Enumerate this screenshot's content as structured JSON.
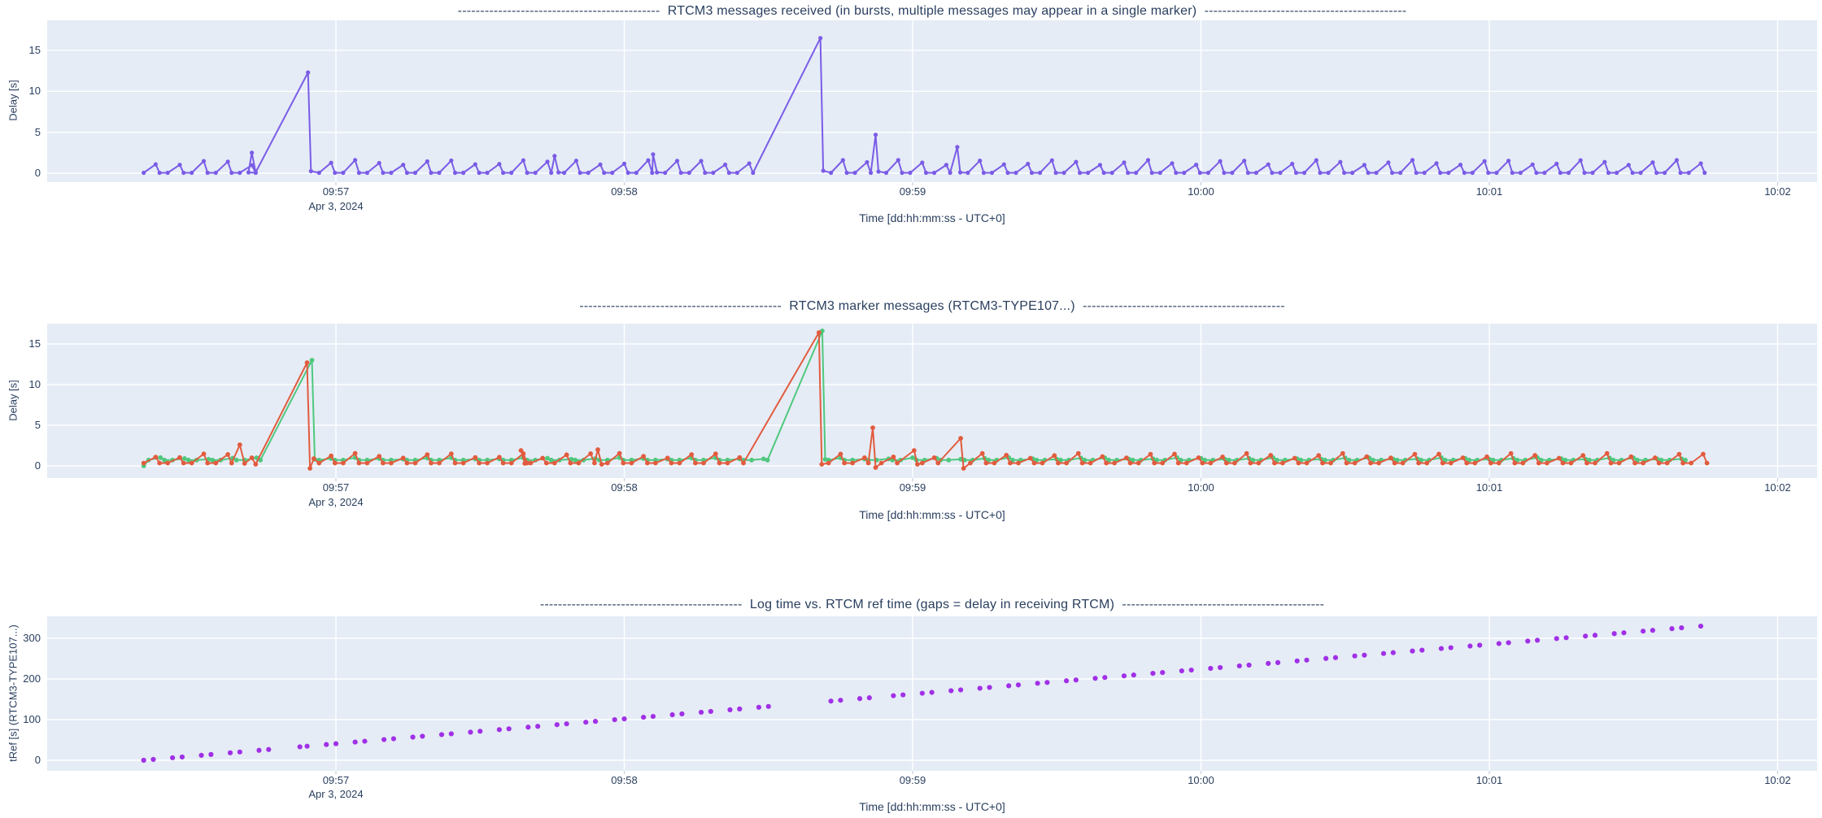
{
  "styles": {
    "plot_bg": "#e5ecf6",
    "grid_color": "#ffffff",
    "text_color": "#2a3f5f",
    "tick_mark_color": "#c4cede"
  },
  "chart_data": [
    {
      "id": "rtcm3-messages-received",
      "type": "line",
      "dashes": "---------------------------------------------",
      "title": "RTCM3 messages received (in bursts, multiple messages may appear in a single marker)",
      "xlabel": "Time [dd:hh:mm:ss - UTC+0]",
      "ylabel": "Delay [s]",
      "x_axis": {
        "origin": "09:56:00",
        "range_s": [
          0,
          368
        ],
        "date_label": "Apr 3, 2024",
        "ticks": [
          {
            "t": 60,
            "label": "09:57"
          },
          {
            "t": 120,
            "label": "09:58"
          },
          {
            "t": 180,
            "label": "09:59"
          },
          {
            "t": 240,
            "label": "10:00"
          },
          {
            "t": 300,
            "label": "10:01"
          },
          {
            "t": 360,
            "label": "10:02"
          }
        ]
      },
      "y_axis": {
        "range": [
          -1.1,
          18.7
        ],
        "ticks": [
          0,
          5,
          10,
          15
        ]
      },
      "series": [
        {
          "name": "rtcm3-delay",
          "mode": "lines+markers",
          "color": "#7a5ce6",
          "hi_var": 0.3,
          "segments": [
            {
              "type": "saw",
              "t0": 20,
              "t1": 41,
              "p": 5,
              "lo": 0.05,
              "hi": 1.25
            },
            {
              "type": "pts",
              "pts": [
                [
                  41.8,
                  0.1
                ],
                [
                  42.5,
                  2.5
                ],
                [
                  43.3,
                  0.1
                ]
              ]
            },
            {
              "type": "pts",
              "pts": [
                [
                  54.2,
                  12.3
                ],
                [
                  54.8,
                  0.25
                ]
              ]
            },
            {
              "type": "saw",
              "t0": 56.5,
              "t1": 104,
              "p": 5,
              "lo": 0.05,
              "hi": 1.3
            },
            {
              "type": "pts",
              "pts": [
                [
                  105.5,
                  2.1
                ],
                [
                  106.3,
                  0.1
                ]
              ]
            },
            {
              "type": "saw",
              "t0": 107.5,
              "t1": 124,
              "p": 5,
              "lo": 0.05,
              "hi": 1.3
            },
            {
              "type": "pts",
              "pts": [
                [
                  126,
                  2.3
                ],
                [
                  126.8,
                  0.1
                ]
              ]
            },
            {
              "type": "saw",
              "t0": 128.5,
              "t1": 146,
              "p": 5,
              "lo": 0.05,
              "hi": 1.3
            },
            {
              "type": "pts",
              "pts": [
                [
                  160.8,
                  16.5
                ],
                [
                  161.4,
                  0.3
                ]
              ]
            },
            {
              "type": "saw",
              "t0": 163,
              "t1": 169,
              "p": 5,
              "lo": 0.05,
              "hi": 1.3
            },
            {
              "type": "pts",
              "pts": [
                [
                  172.3,
                  4.7
                ],
                [
                  172.9,
                  0.2
                ]
              ]
            },
            {
              "type": "saw",
              "t0": 174.5,
              "t1": 186,
              "p": 5,
              "lo": 0.05,
              "hi": 1.3
            },
            {
              "type": "pts",
              "pts": [
                [
                  189.3,
                  3.2
                ],
                [
                  189.9,
                  0.1
                ]
              ]
            },
            {
              "type": "saw",
              "t0": 191.5,
              "t1": 342,
              "p": 5,
              "lo": 0.05,
              "hi": 1.3
            }
          ]
        }
      ]
    },
    {
      "id": "rtcm3-marker-messages",
      "type": "line",
      "dashes": "---------------------------------------------",
      "title": "RTCM3 marker messages (RTCM3-TYPE107...)",
      "xlabel": "Time [dd:hh:mm:ss - UTC+0]",
      "ylabel": "Delay [s]",
      "x_axis": {
        "origin": "09:56:00",
        "range_s": [
          0,
          368
        ],
        "date_label": "Apr 3, 2024",
        "ticks": [
          {
            "t": 60,
            "label": "09:57"
          },
          {
            "t": 120,
            "label": "09:58"
          },
          {
            "t": 180,
            "label": "09:59"
          },
          {
            "t": 240,
            "label": "10:00"
          },
          {
            "t": 300,
            "label": "10:01"
          },
          {
            "t": 360,
            "label": "10:02"
          }
        ]
      },
      "y_axis": {
        "range": [
          -1.5,
          17.5
        ],
        "ticks": [
          0,
          5,
          10,
          15
        ]
      },
      "series": [
        {
          "name": "marker-delay-green",
          "mode": "lines+markers",
          "color": "#4fc87d",
          "hi_var": 0.1,
          "segments": [
            {
              "type": "pts",
              "pts": [
                [
                  20,
                  0
                ]
              ]
            },
            {
              "type": "saw",
              "t0": 21,
              "t1": 41,
              "p": 5,
              "lo": 0.72,
              "hi": 0.92
            },
            {
              "type": "pts",
              "pts": [
                [
                  55,
                  13.0
                ],
                [
                  55.6,
                  0.8
                ]
              ]
            },
            {
              "type": "saw",
              "t0": 56.5,
              "t1": 147,
              "p": 5,
              "lo": 0.72,
              "hi": 0.92
            },
            {
              "type": "pts",
              "pts": [
                [
                  161.2,
                  16.6
                ],
                [
                  161.8,
                  0.8
                ]
              ]
            },
            {
              "type": "saw",
              "t0": 162.5,
              "t1": 342,
              "p": 5,
              "lo": 0.72,
              "hi": 0.92
            }
          ]
        },
        {
          "name": "marker-delay-red",
          "mode": "lines+markers",
          "color": "#e25b3e",
          "hi_var": 0.3,
          "segments": [
            {
              "type": "saw",
              "t0": 20,
              "t1": 38,
              "p": 5,
              "lo": 0.35,
              "hi": 1.25
            },
            {
              "type": "pts",
              "pts": [
                [
                  40,
                  2.6
                ],
                [
                  41,
                  0.3
                ],
                [
                  42.5,
                  1.0
                ],
                [
                  43.3,
                  0.2
                ]
              ]
            },
            {
              "type": "pts",
              "pts": [
                [
                  54,
                  12.7
                ],
                [
                  54.6,
                  -0.3
                ],
                [
                  55.4,
                  0.9
                ]
              ]
            },
            {
              "type": "saw",
              "t0": 56.5,
              "t1": 97,
              "p": 5,
              "lo": 0.35,
              "hi": 1.25
            },
            {
              "type": "pts",
              "pts": [
                [
                  98.5,
                  1.9
                ],
                [
                  99.3,
                  0.3
                ]
              ]
            },
            {
              "type": "saw",
              "t0": 100.5,
              "t1": 113,
              "p": 5,
              "lo": 0.35,
              "hi": 1.25
            },
            {
              "type": "pts",
              "pts": [
                [
                  114.5,
                  2.0
                ],
                [
                  115.3,
                  0.2
                ]
              ]
            },
            {
              "type": "saw",
              "t0": 116.5,
              "t1": 146,
              "p": 5,
              "lo": 0.35,
              "hi": 1.25
            },
            {
              "type": "pts",
              "pts": [
                [
                  160.5,
                  16.4
                ],
                [
                  161.1,
                  0.2
                ]
              ]
            },
            {
              "type": "saw",
              "t0": 162.5,
              "t1": 168,
              "p": 5,
              "lo": 0.35,
              "hi": 1.25
            },
            {
              "type": "pts",
              "pts": [
                [
                  171.7,
                  4.7
                ],
                [
                  172.3,
                  -0.2
                ]
              ]
            },
            {
              "type": "saw",
              "t0": 173.5,
              "t1": 178,
              "p": 5,
              "lo": 0.35,
              "hi": 1.25
            },
            {
              "type": "pts",
              "pts": [
                [
                  180.3,
                  1.9
                ],
                [
                  181,
                  0.2
                ]
              ]
            },
            {
              "type": "saw",
              "t0": 182,
              "t1": 186,
              "p": 5,
              "lo": 0.35,
              "hi": 1.25
            },
            {
              "type": "pts",
              "pts": [
                [
                  190,
                  3.4
                ],
                [
                  190.6,
                  -0.3
                ]
              ]
            },
            {
              "type": "saw",
              "t0": 192,
              "t1": 342,
              "p": 5,
              "lo": 0.35,
              "hi": 1.25
            }
          ]
        }
      ]
    },
    {
      "id": "logtime-vs-rtcm-reftime",
      "type": "scatter",
      "dashes": "---------------------------------------------",
      "title": "Log time vs. RTCM ref time (gaps = delay in receiving RTCM)",
      "xlabel": "Time [dd:hh:mm:ss - UTC+0]",
      "ylabel": "tRef [s] (RTCM3-TYPE107...)",
      "x_axis": {
        "origin": "09:56:00",
        "range_s": [
          0,
          368
        ],
        "date_label": "Apr 3, 2024",
        "ticks": [
          {
            "t": 60,
            "label": "09:57"
          },
          {
            "t": 120,
            "label": "09:58"
          },
          {
            "t": 180,
            "label": "09:59"
          },
          {
            "t": 240,
            "label": "10:00"
          },
          {
            "t": 300,
            "label": "10:01"
          },
          {
            "t": 360,
            "label": "10:02"
          }
        ]
      },
      "y_axis": {
        "range": [
          -26,
          354
        ],
        "ticks": [
          0,
          100,
          200,
          300
        ]
      },
      "series": [
        {
          "name": "tref-dots",
          "mode": "markers",
          "color": "#a030e6",
          "slope": 1.018,
          "t_offset": 20,
          "step_s": 2.0,
          "runs": [
            [
              20,
              46
            ],
            [
              50.5,
              53
            ],
            [
              54,
              150
            ],
            [
              161,
              172
            ],
            [
              174,
              188
            ],
            [
              190,
              345
            ]
          ]
        }
      ]
    }
  ]
}
